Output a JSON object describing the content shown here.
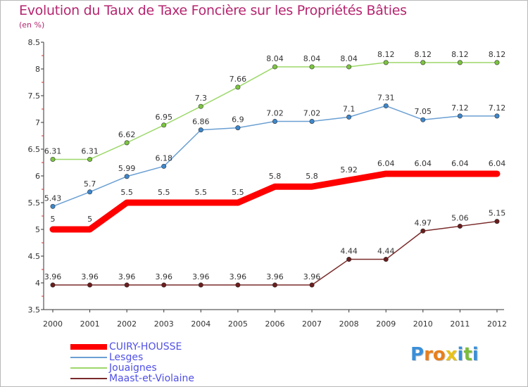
{
  "header": {
    "title": "Evolution du Taux de Taxe Foncière sur les Propriétés Bâties",
    "subtitle": "(en %)"
  },
  "logo": {
    "letters": [
      "P",
      "r",
      "o",
      "x",
      "i",
      "t",
      "i"
    ],
    "colors": [
      "#3a8fd8",
      "#e87f1c",
      "#e87f1c",
      "#e8c21c",
      "#3a8fd8",
      "#7bbd3d",
      "#3a8fd8"
    ]
  },
  "chart_data": {
    "type": "line",
    "title": "Evolution du Taux de Taxe Foncière sur les Propriétés Bâties",
    "ylabel": "(en %)",
    "xlabel": "",
    "categories": [
      "2000",
      "2001",
      "2002",
      "2003",
      "2004",
      "2005",
      "2006",
      "2007",
      "2008",
      "2009",
      "2010",
      "2011",
      "2012"
    ],
    "ylim": [
      3.5,
      8.5
    ],
    "yticks": [
      "3.5",
      "4",
      "4.5",
      "5",
      "5.5",
      "6",
      "6.5",
      "7",
      "7.5",
      "8",
      "8.5"
    ],
    "grid": false,
    "series": [
      {
        "name": "CUIRY-HOUSSE",
        "color": "#ff0000",
        "emphasis": true,
        "values": [
          5,
          5,
          5.5,
          5.5,
          5.5,
          5.5,
          5.8,
          5.8,
          5.92,
          6.04,
          6.04,
          6.04,
          6.04
        ],
        "labels": [
          "5",
          "5",
          "5.5",
          "5.5",
          "5.5",
          "5.5",
          "5.8",
          "5.8",
          "5.92",
          "6.04",
          "6.04",
          "6.04",
          "6.04"
        ]
      },
      {
        "name": "Lesges",
        "color": "#6a9fd3",
        "marker": "#3d87cc",
        "values": [
          5.43,
          5.7,
          5.99,
          6.18,
          6.86,
          6.9,
          7.02,
          7.02,
          7.1,
          7.31,
          7.05,
          7.12,
          7.12
        ],
        "labels": [
          "5.43",
          "5.7",
          "5.99",
          "6.18",
          "6.86",
          "6.9",
          "7.02",
          "7.02",
          "7.1",
          "7.31",
          "7.05",
          "7.12",
          "7.12"
        ]
      },
      {
        "name": "Jouaignes",
        "color": "#9dd86a",
        "marker": "#7cc540",
        "values": [
          6.31,
          6.31,
          6.62,
          6.95,
          7.3,
          7.66,
          8.04,
          8.04,
          8.04,
          8.12,
          8.12,
          8.12,
          8.12
        ],
        "labels": [
          "6.31",
          "6.31",
          "6.62",
          "6.95",
          "7.3",
          "7.66",
          "8.04",
          "8.04",
          "8.04",
          "8.12",
          "8.12",
          "8.12",
          "8.12"
        ]
      },
      {
        "name": "Maast-et-Violaine",
        "color": "#7a2a2a",
        "marker": "#6b1c1c",
        "values": [
          3.96,
          3.96,
          3.96,
          3.96,
          3.96,
          3.96,
          3.96,
          3.96,
          4.44,
          4.44,
          4.97,
          5.06,
          5.15
        ],
        "labels": [
          "3.96",
          "3.96",
          "3.96",
          "3.96",
          "3.96",
          "3.96",
          "3.96",
          "3.96",
          "4.44",
          "4.44",
          "4.97",
          "5.06",
          "5.15"
        ]
      }
    ],
    "legend_position": "bottom-left"
  }
}
